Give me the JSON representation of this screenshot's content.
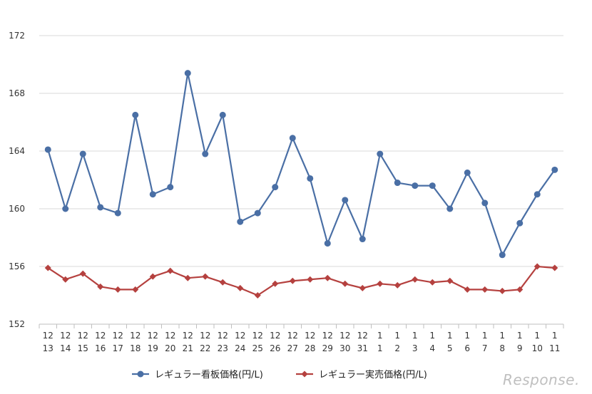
{
  "chart_data": {
    "type": "line",
    "ylim": [
      152,
      172
    ],
    "yticks": [
      152,
      156,
      160,
      164,
      168,
      172
    ],
    "grid": true,
    "legend_position": "bottom",
    "categories": [
      [
        "12",
        "13"
      ],
      [
        "12",
        "14"
      ],
      [
        "12",
        "15"
      ],
      [
        "12",
        "16"
      ],
      [
        "12",
        "17"
      ],
      [
        "12",
        "18"
      ],
      [
        "12",
        "19"
      ],
      [
        "12",
        "20"
      ],
      [
        "12",
        "21"
      ],
      [
        "12",
        "22"
      ],
      [
        "12",
        "23"
      ],
      [
        "12",
        "24"
      ],
      [
        "12",
        "25"
      ],
      [
        "12",
        "26"
      ],
      [
        "12",
        "27"
      ],
      [
        "12",
        "28"
      ],
      [
        "12",
        "29"
      ],
      [
        "12",
        "30"
      ],
      [
        "12",
        "31"
      ],
      [
        "1",
        "1"
      ],
      [
        "1",
        "2"
      ],
      [
        "1",
        "3"
      ],
      [
        "1",
        "4"
      ],
      [
        "1",
        "5"
      ],
      [
        "1",
        "6"
      ],
      [
        "1",
        "7"
      ],
      [
        "1",
        "8"
      ],
      [
        "1",
        "9"
      ],
      [
        "1",
        "10"
      ],
      [
        "1",
        "11"
      ]
    ],
    "series": [
      {
        "name": "レギュラー看板価格(円/L)",
        "color": "#4a6fa5",
        "marker": "circle",
        "values": [
          164.1,
          160.0,
          163.8,
          160.1,
          159.7,
          166.5,
          161.0,
          161.5,
          169.4,
          163.8,
          166.5,
          159.1,
          159.7,
          161.5,
          164.9,
          162.1,
          157.6,
          160.6,
          157.9,
          163.8,
          161.8,
          161.6,
          161.6,
          160.0,
          162.5,
          160.4,
          156.8,
          159.0,
          161.0,
          162.7
        ]
      },
      {
        "name": "レギュラー実売価格(円/L)",
        "color": "#b5413f",
        "marker": "diamond",
        "values": [
          155.9,
          155.1,
          155.5,
          154.6,
          154.4,
          154.4,
          155.3,
          155.7,
          155.2,
          155.3,
          154.9,
          154.5,
          154.0,
          154.8,
          155.0,
          155.1,
          155.2,
          154.8,
          154.5,
          154.8,
          154.7,
          155.1,
          154.9,
          155.0,
          154.4,
          154.4,
          154.3,
          154.4,
          156.0,
          155.9
        ]
      }
    ]
  },
  "watermark": "Response."
}
